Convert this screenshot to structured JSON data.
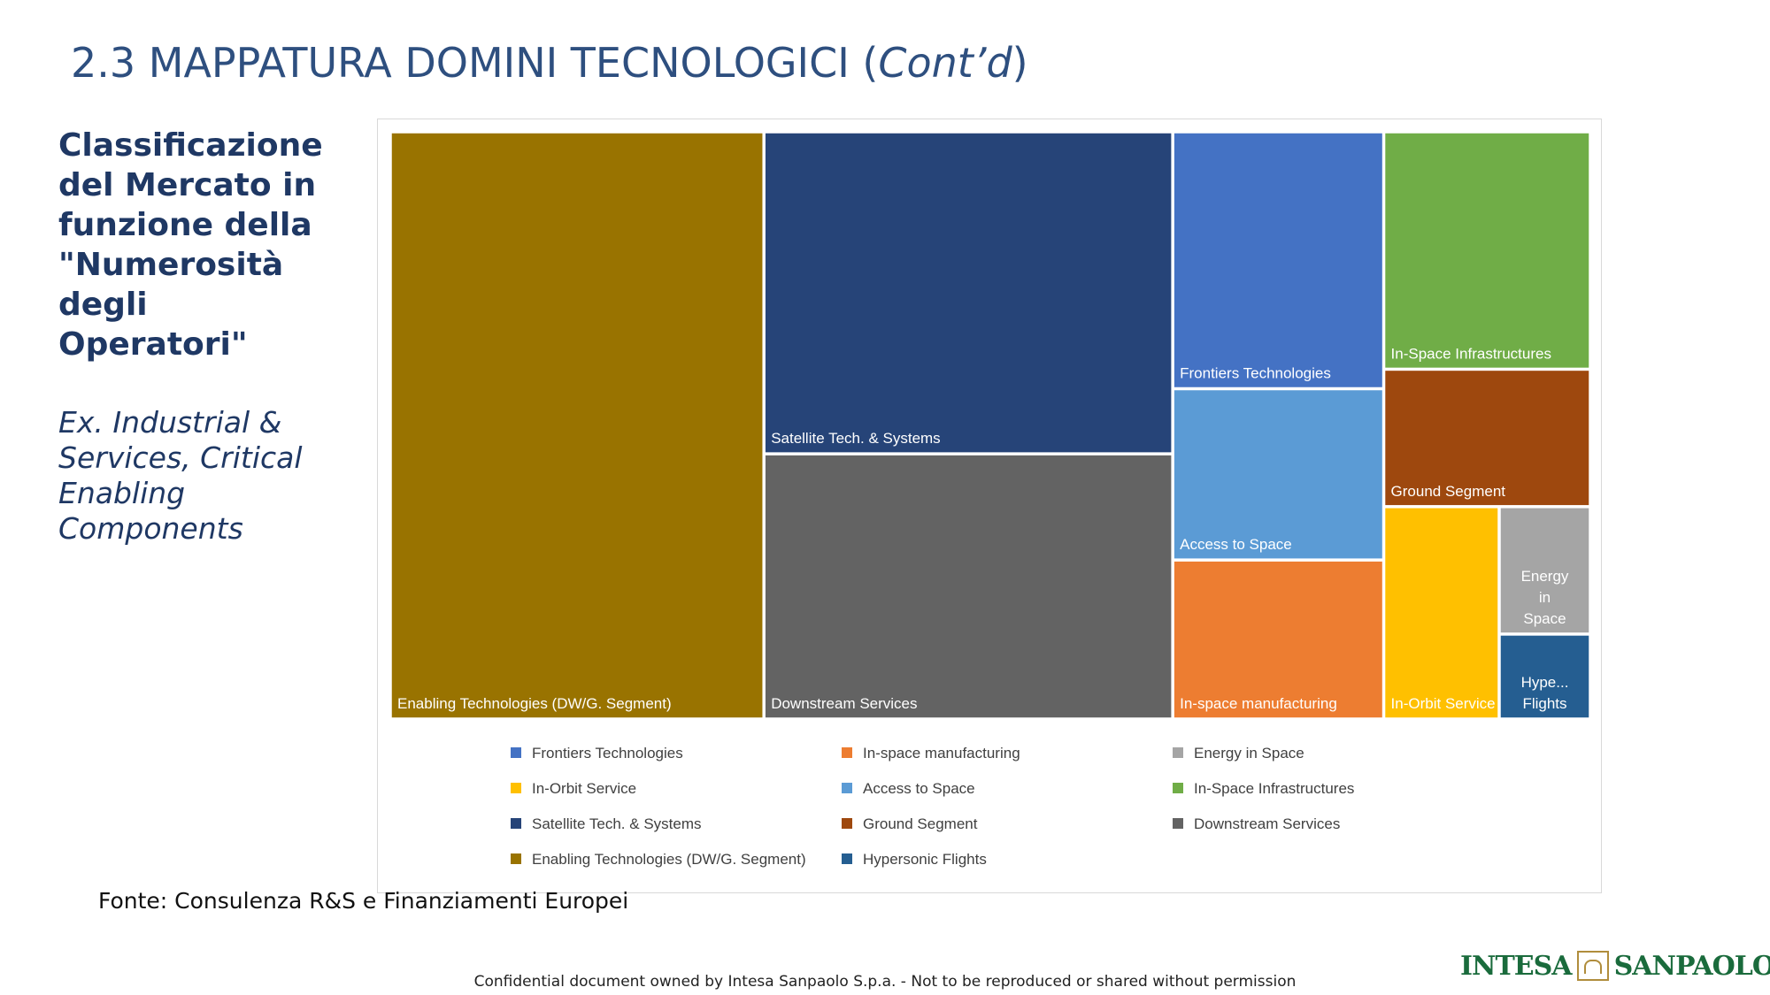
{
  "slide": {
    "title_main": "2.3 MAPPATURA DOMINI TECNOLOGICI (",
    "title_italic": "Cont’d",
    "title_close": ")",
    "side_heading": "Classificazione del Mercato in funzione della \"Numerosità degli Operatori\"",
    "side_sub": "Ex. Industrial & Services, Critical Enabling Components",
    "source": "Fonte: Consulenza R&S e Finanziamenti Europei",
    "footer": "Confidential document owned by Intesa Sanpaolo S.p.a. - Not to be reproduced or shared without permission",
    "logo_left": "INTESA",
    "logo_right": "SANPAOLO"
  },
  "chart_data": {
    "type": "treemap",
    "title": "",
    "series": [
      {
        "name": "Enabling Technologies (DW/G. Segment)",
        "label": "Enabling Technologies (DW/G. Segment)",
        "value": 17.0,
        "color": "#997300"
      },
      {
        "name": "Satellite Tech. & Systems",
        "label": "Satellite Tech. & Systems",
        "value": 10.2,
        "color": "#264478"
      },
      {
        "name": "Downstream Services",
        "label": "Downstream Services",
        "value": 8.4,
        "color": "#636363"
      },
      {
        "name": "Frontiers Technologies",
        "label": "Frontiers Technologies",
        "value": 4.2,
        "color": "#4472c4"
      },
      {
        "name": "Access to Space",
        "label": "Access to Space",
        "value": 2.8,
        "color": "#5b9bd5"
      },
      {
        "name": "In-space manufacturing",
        "label": "In-space manufacturing",
        "value": 2.6,
        "color": "#ed7d31"
      },
      {
        "name": "In-Space Infrastructures",
        "label": "In-Space Infrastructures",
        "value": 3.8,
        "color": "#70ad47"
      },
      {
        "name": "Ground Segment",
        "label": "Ground Segment",
        "value": 2.2,
        "color": "#9e480e"
      },
      {
        "name": "In-Orbit Service",
        "label": "In-Orbit Service",
        "value": 1.9,
        "color": "#ffc000"
      },
      {
        "name": "Energy in Space",
        "label": "Energy in Space",
        "value": 0.9,
        "color": "#a5a5a5"
      },
      {
        "name": "Hypersonic Flights",
        "label": "Hype... Flights",
        "value": 0.6,
        "color": "#255e91"
      }
    ],
    "legend": {
      "position": "bottom",
      "entries": [
        "Frontiers Technologies",
        "In-space manufacturing",
        "Energy in Space",
        "In-Orbit Service",
        "Access to Space",
        "In-Space Infrastructures",
        "Satellite Tech. & Systems",
        "Ground Segment",
        "Downstream Services",
        "Enabling Technologies (DW/G. Segment)",
        "Hypersonic Flights"
      ]
    }
  }
}
